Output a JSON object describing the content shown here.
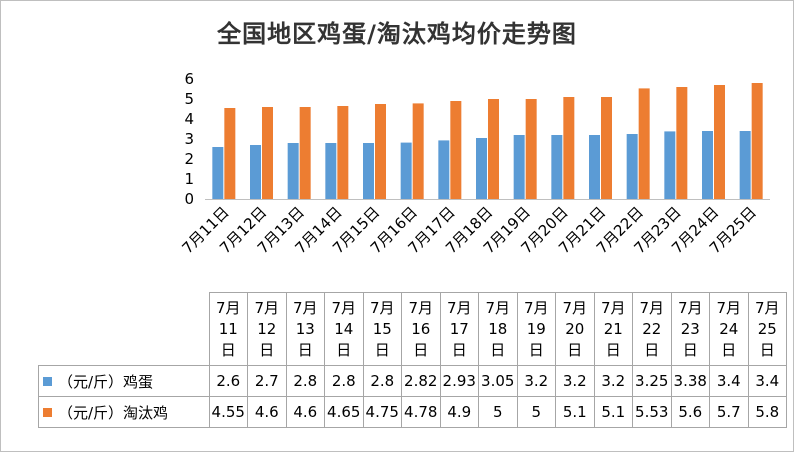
{
  "chart_data": {
    "type": "bar",
    "title": "全国地区鸡蛋/淘汰鸡均价走势图",
    "categories": [
      "7月11日",
      "7月12日",
      "7月13日",
      "7月14日",
      "7月15日",
      "7月16日",
      "7月17日",
      "7月18日",
      "7月19日",
      "7月20日",
      "7月21日",
      "7月22日",
      "7月23日",
      "7月24日",
      "7月25日"
    ],
    "series": [
      {
        "name": "（元/斤）鸡蛋",
        "color": "#5b9bd5",
        "values": [
          2.6,
          2.7,
          2.8,
          2.8,
          2.8,
          2.82,
          2.93,
          3.05,
          3.2,
          3.2,
          3.2,
          3.25,
          3.38,
          3.4,
          3.4
        ]
      },
      {
        "name": "（元/斤）淘汰鸡",
        "color": "#ed7d31",
        "values": [
          4.55,
          4.6,
          4.6,
          4.65,
          4.75,
          4.78,
          4.9,
          5,
          5,
          5.1,
          5.1,
          5.53,
          5.6,
          5.7,
          5.8
        ]
      }
    ],
    "yticks": [
      "0",
      "1",
      "2",
      "3",
      "4",
      "5",
      "6"
    ],
    "ylim": [
      0,
      6
    ],
    "grid": false,
    "legend": "data-table",
    "table_headers": [
      [
        "7月",
        "11",
        "日"
      ],
      [
        "7月",
        "12",
        "日"
      ],
      [
        "7月",
        "13",
        "日"
      ],
      [
        "7月",
        "14",
        "日"
      ],
      [
        "7月",
        "15",
        "日"
      ],
      [
        "7月",
        "16",
        "日"
      ],
      [
        "7月",
        "17",
        "日"
      ],
      [
        "7月",
        "18",
        "日"
      ],
      [
        "7月",
        "19",
        "日"
      ],
      [
        "7月",
        "20",
        "日"
      ],
      [
        "7月",
        "21",
        "日"
      ],
      [
        "7月",
        "22",
        "日"
      ],
      [
        "7月",
        "23",
        "日"
      ],
      [
        "7月",
        "24",
        "日"
      ],
      [
        "7月",
        "25",
        "日"
      ]
    ],
    "table_values": [
      [
        "2.6",
        "2.7",
        "2.8",
        "2.8",
        "2.8",
        "2.82",
        "2.93",
        "3.05",
        "3.2",
        "3.2",
        "3.2",
        "3.25",
        "3.38",
        "3.4",
        "3.4"
      ],
      [
        "4.55",
        "4.6",
        "4.6",
        "4.65",
        "4.75",
        "4.78",
        "4.9",
        "5",
        "5",
        "5.1",
        "5.1",
        "5.53",
        "5.6",
        "5.7",
        "5.8"
      ]
    ]
  }
}
